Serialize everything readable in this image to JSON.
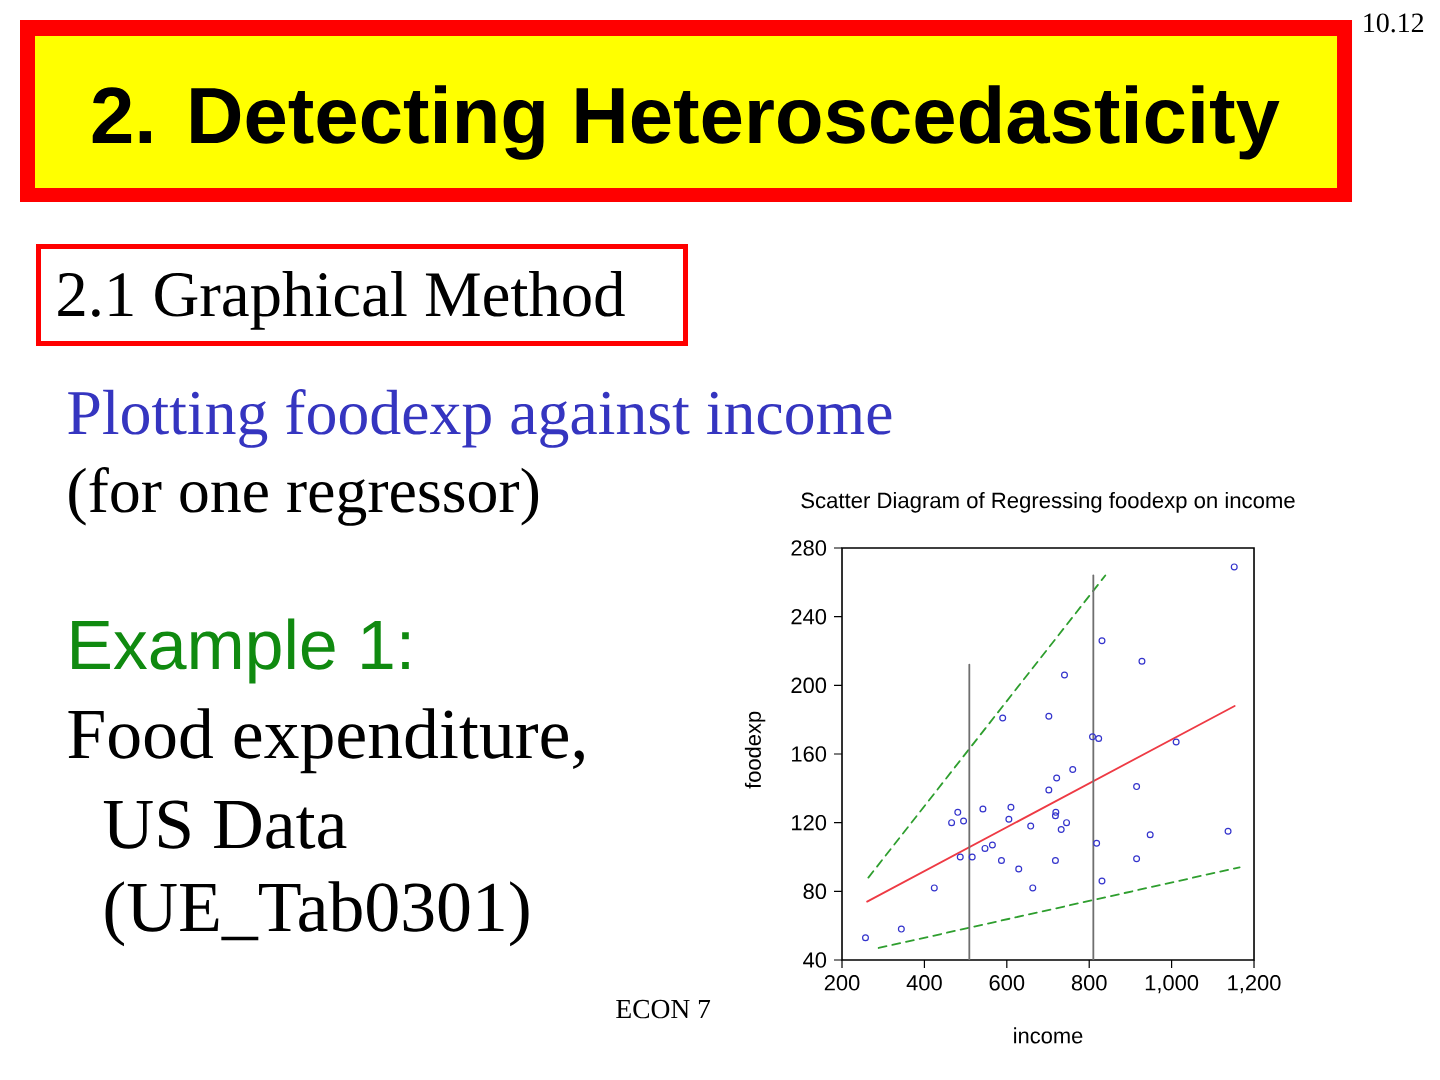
{
  "chart_data": {
    "type": "scatter",
    "title": "Scatter Diagram of Regressing foodexp on income",
    "xlabel": "income",
    "ylabel": "foodexp",
    "xlim": [
      200,
      1200
    ],
    "ylim": [
      40,
      280
    ],
    "xticks": [
      200,
      400,
      600,
      800,
      {
        "value": 1000,
        "label": "1,000"
      },
      {
        "value": 1200,
        "label": "1,200"
      }
    ],
    "yticks": [
      40,
      80,
      120,
      160,
      200,
      240,
      280
    ],
    "series": [
      {
        "type": "scatter",
        "color": "#3333cc",
        "marker": "circle",
        "x": [
          1152,
          831,
          928,
          740,
          590,
          702,
          808,
          823,
          1011,
          721,
          760,
          702,
          915,
          481,
          466,
          495,
          542,
          610,
          605,
          719,
          718,
          745,
          732,
          658,
          948,
          1137,
          818,
          565,
          547,
          487,
          516,
          587,
          629,
          718,
          915,
          663,
          424,
          831,
          344,
          257
        ],
        "values": [
          269,
          226,
          214,
          206,
          181,
          182,
          170,
          169,
          167,
          146,
          151,
          139,
          141,
          126,
          120,
          121,
          128,
          129,
          122,
          126,
          124,
          120,
          116,
          118,
          113,
          115,
          108,
          107,
          105,
          100,
          100,
          98,
          93,
          98,
          99,
          82,
          82,
          86,
          58,
          53
        ]
      },
      {
        "type": "line",
        "color": "#ee3a44",
        "x": [
          261,
          1153
        ],
        "values": [
          74,
          188
        ]
      },
      {
        "type": "line",
        "color": "#2e9e2e",
        "line_style": "dashed",
        "x": [
          264,
          839
        ],
        "values": [
          88,
          264
        ]
      },
      {
        "type": "line",
        "color": "#2e9e2e",
        "line_style": "dashed",
        "x": [
          289,
          1165
        ],
        "values": [
          47,
          94
        ]
      },
      {
        "type": "line",
        "color": "#6f6f6f",
        "x": [
          509,
          509
        ],
        "values": [
          40,
          212
        ]
      },
      {
        "type": "line",
        "color": "#6f6f6f",
        "x": [
          810,
          810
        ],
        "values": [
          40,
          264
        ]
      }
    ],
    "annotations": [
      "10.12",
      "2. Detecting Heteroscedasticity",
      "2.1 Graphical Method",
      "Plotting foodexp against income",
      "(for one regressor)",
      "Example 1:",
      "Food expenditure,",
      "US Data",
      "(UE_Tab0301)",
      "ECON 7"
    ]
  }
}
